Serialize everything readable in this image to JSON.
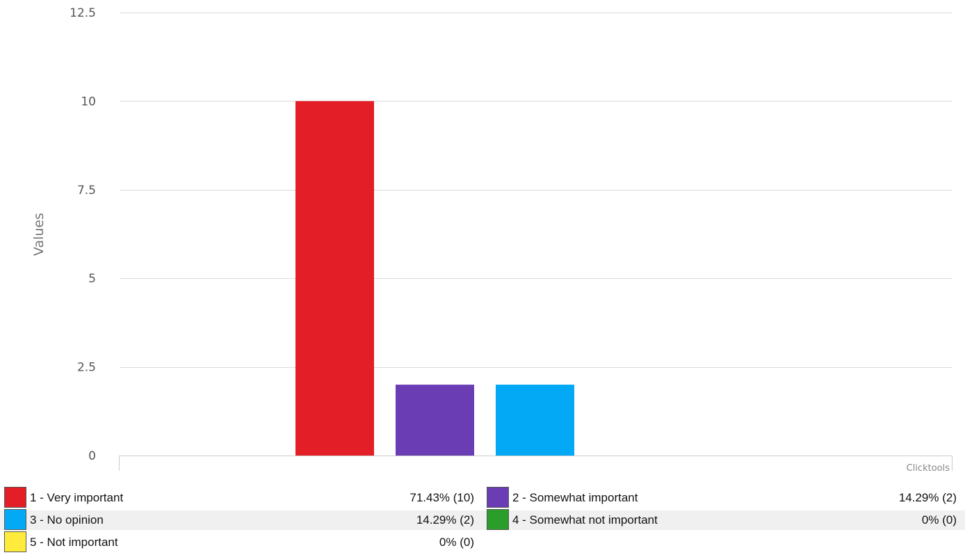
{
  "chart_data": {
    "type": "bar",
    "categories": [
      "1 - Very important",
      "2 - Somewhat important",
      "3 - No opinion",
      "4 - Somewhat not important",
      "5 - Not important"
    ],
    "values": [
      10,
      2,
      2,
      0,
      0
    ],
    "colors": [
      "#e41e26",
      "#6a3db5",
      "#03a9f4",
      "#2a9d2a",
      "#ffeb3b"
    ],
    "ylabel": "Values",
    "ylim": [
      0,
      12.5
    ],
    "yticks": [
      "0",
      "2.5",
      "5",
      "7.5",
      "10",
      "12.5"
    ],
    "grid": true,
    "credit": "Clicktools"
  },
  "legend": [
    {
      "label": "1 - Very important",
      "value": "71.43% (10)",
      "color": "#e41e26"
    },
    {
      "label": "2 - Somewhat important",
      "value": "14.29% (2)",
      "color": "#6a3db5"
    },
    {
      "label": "3 - No opinion",
      "value": "14.29% (2)",
      "color": "#03a9f4"
    },
    {
      "label": "4 - Somewhat not important",
      "value": "0% (0)",
      "color": "#2a9d2a"
    },
    {
      "label": "5 - Not important",
      "value": "0% (0)",
      "color": "#ffeb3b"
    }
  ]
}
